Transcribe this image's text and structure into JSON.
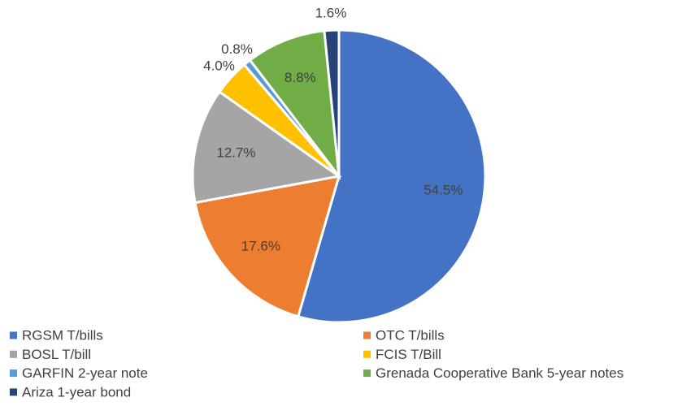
{
  "chart_data": {
    "type": "pie",
    "categories": [
      "RGSM T/bills",
      "OTC T/bills",
      "BOSL T/bill",
      "FCIS T/Bill",
      "GARFIN 2-year note",
      "Grenada Cooperative Bank 5-year notes",
      "Ariza 1-year bond"
    ],
    "values": [
      54.5,
      17.6,
      12.7,
      4.0,
      0.8,
      8.8,
      1.6
    ],
    "value_labels": [
      "54.5%",
      "17.6%",
      "12.7%",
      "4.0%",
      "0.8%",
      "8.8%",
      "1.6%"
    ],
    "colors": [
      "#4472c4",
      "#ed7d31",
      "#a5a5a5",
      "#ffc000",
      "#5b9bd5",
      "#70ad47",
      "#264478"
    ],
    "legend": "bottom"
  }
}
